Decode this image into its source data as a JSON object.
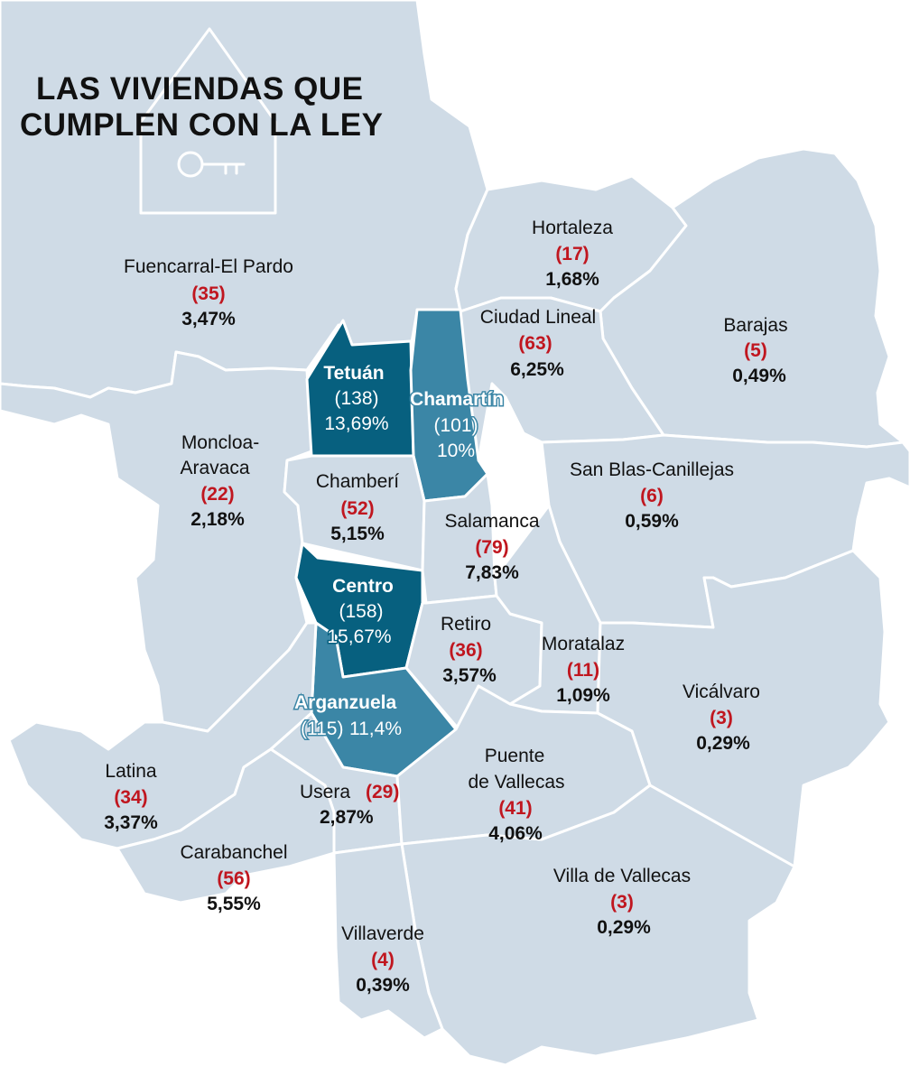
{
  "title": {
    "line1": "LAS VIVIENDAS QUE",
    "line2": "CUMPLEN CON LA LEY"
  },
  "icon": "house-key-icon",
  "colors": {
    "base": "#cfdbe6",
    "medium": "#3b86a6",
    "dark": "#07607f",
    "count": "#c0161f",
    "border": "#ffffff"
  },
  "districts": {
    "fuencarral": {
      "name": "Fuencarral-El Pardo",
      "count": "(35)",
      "pct": "3,47%"
    },
    "hortaleza": {
      "name": "Hortaleza",
      "count": "(17)",
      "pct": "1,68%"
    },
    "barajas": {
      "name": "Barajas",
      "count": "(5)",
      "pct": "0,49%"
    },
    "ciudad_lineal": {
      "name": "Ciudad Lineal",
      "count": "(63)",
      "pct": "6,25%"
    },
    "tetuan": {
      "name": "Tetuán",
      "count": "(138)",
      "pct": "13,69%"
    },
    "chamartin": {
      "name": "Chamartín",
      "count": "(101)",
      "pct": "10%"
    },
    "moncloa": {
      "name1": "Moncloa-",
      "name2": "Aravaca",
      "count": "(22)",
      "pct": "2,18%"
    },
    "chamberi": {
      "name": "Chamberí",
      "count": "(52)",
      "pct": "5,15%"
    },
    "san_blas": {
      "name": "San Blas-Canillejas",
      "count": "(6)",
      "pct": "0,59%"
    },
    "salamanca": {
      "name": "Salamanca",
      "count": "(79)",
      "pct": "7,83%"
    },
    "centro": {
      "name": "Centro",
      "count": "(158)",
      "pct": "15,67%"
    },
    "retiro": {
      "name": "Retiro",
      "count": "(36)",
      "pct": "3,57%"
    },
    "moratalaz": {
      "name": "Moratalaz",
      "count": "(11)",
      "pct": "1,09%"
    },
    "vicalvaro": {
      "name": "Vicálvaro",
      "count": "(3)",
      "pct": "0,29%"
    },
    "arganzuela": {
      "name": "Arganzuela",
      "count": "(115)",
      "pct": "11,4%"
    },
    "latina": {
      "name": "Latina",
      "count": "(34)",
      "pct": "3,37%"
    },
    "usera": {
      "name": "Usera",
      "count": "(29)",
      "pct": "2,87%"
    },
    "puente_vallecas": {
      "name1": "Puente",
      "name2": "de Vallecas",
      "count": "(41)",
      "pct": "4,06%"
    },
    "carabanchel": {
      "name": "Carabanchel",
      "count": "(56)",
      "pct": "5,55%"
    },
    "villa_vallecas": {
      "name": "Villa de Vallecas",
      "count": "(3)",
      "pct": "0,29%"
    },
    "villaverde": {
      "name": "Villaverde",
      "count": "(4)",
      "pct": "0,39%"
    }
  }
}
